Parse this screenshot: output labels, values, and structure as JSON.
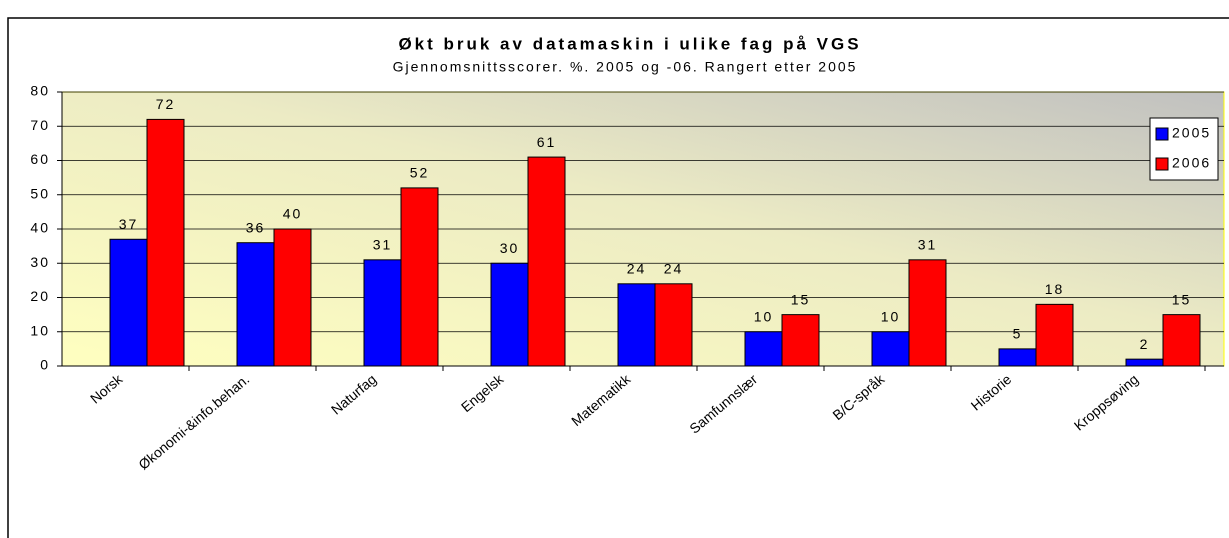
{
  "chart_data": {
    "type": "bar",
    "title": "Økt bruk av datamaskin i ulike fag på VGS",
    "subtitle": "Gjennomsnittsscorer. %. 2005 og -06. Rangert etter 2005",
    "categories": [
      "Norsk",
      "Økonomi-&info.behan.",
      "Naturfag",
      "Engelsk",
      "Matematikk",
      "Samfunnslær",
      "B/C-språk",
      "Historie",
      "Kroppsøving"
    ],
    "series": [
      {
        "name": "2005",
        "color": "#0000ff",
        "values": [
          37,
          36,
          31,
          30,
          24,
          10,
          10,
          5,
          2
        ]
      },
      {
        "name": "2006",
        "color": "#ff0000",
        "values": [
          72,
          40,
          52,
          61,
          24,
          15,
          31,
          18,
          15
        ]
      }
    ],
    "ylim": [
      0,
      80
    ],
    "yticks": [
      0,
      10,
      20,
      30,
      40,
      50,
      60,
      70,
      80
    ],
    "grid": true,
    "legend": "right"
  }
}
